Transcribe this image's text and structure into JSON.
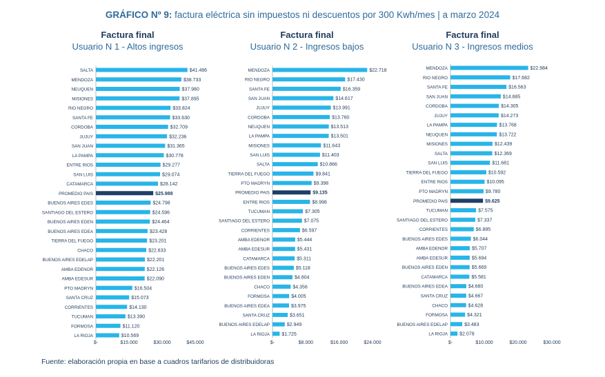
{
  "title_bold": "GRÁFICO Nº 9:",
  "title_rest": " factura eléctrica sin impuestos ni descuentos por 300 Kwh/mes | a marzo 2024",
  "source": "Fuente: elaboración propia en base a cuadros tarifarios de distribuidoras",
  "colors": {
    "bar": "#29b5e8",
    "highlight": "#1f3f66",
    "title": "#2f6b9a",
    "axis": "#bbbbbb"
  },
  "chart_data": [
    {
      "type": "bar",
      "orientation": "horizontal",
      "title": "Factura final",
      "subtitle": "Usuario N 1 - Altos ingresos",
      "highlight": "PROMEDIO PAIS",
      "xlim": [
        0,
        45000
      ],
      "ticks": [
        0,
        15000,
        30000,
        45000
      ],
      "tick_labels": [
        "$-",
        "$15.000",
        "$30.000",
        "$45.000"
      ],
      "categories": [
        "SALTA",
        "MENDOZA",
        "NEUQUEN",
        "MISIONES",
        "RIO NEGRO",
        "SANTA FE",
        "CORDOBA",
        "JUJUY",
        "SAN JUAN",
        "LA PAMPA",
        "ENTRE RIOS",
        "SAN LUIS",
        "CATAMARCA",
        "PROMEDIO PAIS",
        "BUENOS AIRES EDES",
        "SANTIAGO DEL ESTERO",
        "BUENOS AIRES EDEN",
        "BUENOS AIRES EDEA",
        "TIERRA DEL FUEGO",
        "CHACO",
        "BUENOS AIRES EDELAP",
        "AMBA EDENOR",
        "AMBA EDESUR",
        "PTO MADRYN",
        "SANTA CRUZ",
        "CORRIENTES",
        "TUCUMAN",
        "FORMOSA",
        "LA RIOJA"
      ],
      "values": [
        41486,
        38733,
        37980,
        37895,
        33824,
        33630,
        32709,
        32236,
        31365,
        30778,
        29277,
        29074,
        28142,
        25988,
        24798,
        24596,
        24464,
        23428,
        23201,
        22833,
        22201,
        22126,
        22090,
        16504,
        15073,
        14130,
        13390,
        11120,
        10569
      ],
      "value_labels": [
        "$41.486",
        "$38.733",
        "$37.980",
        "$37.895",
        "$33.824",
        "$33.630",
        "$32.709",
        "$32.236",
        "$31.365",
        "$30.778",
        "$29.277",
        "$29.074",
        "$28.142",
        "$25.988",
        "$24.798",
        "$24.596",
        "$24.464",
        "$23.428",
        "$23.201",
        "$22.833",
        "$22.201",
        "$22.126",
        "$22.090",
        "$16.504",
        "$15.073",
        "$14.130",
        "$13.390",
        "$11.120",
        "$10.569"
      ]
    },
    {
      "type": "bar",
      "orientation": "horizontal",
      "title": "Factura final",
      "subtitle": "Usuario N 2 - Ingresos bajos",
      "highlight": "PROMEDIO PAIS",
      "xlim": [
        0,
        24000
      ],
      "ticks": [
        0,
        8000,
        16000,
        24000
      ],
      "tick_labels": [
        "$-",
        "$8.000",
        "$16.000",
        "$24.000"
      ],
      "categories": [
        "MENDOZA",
        "RIO NEGRO",
        "SANTA FE",
        "SAN JUAN",
        "JUJUY",
        "CORDOBA",
        "NEUQUEN",
        "LA PAMPA",
        "MISIONES",
        "SAN LUIS",
        "SALTA",
        "TIERRA DEL FUEGO",
        "PTO MADRYN",
        "PROMEDIO PAIS",
        "ENTRE RIOS",
        "TUCUMAN",
        "SANTIAGO DEL ESTERO",
        "CORRIENTES",
        "AMBA EDENOR",
        "AMBA EDESUR",
        "CATAMARCA",
        "BUENOS AIRES EDES",
        "BUENOS AIRES EDEN",
        "CHACO",
        "FORMOSA",
        "BUENOS AIRES EDEA",
        "SANTA CRUZ",
        "BUENOS AIRES EDELAP",
        "LA RIOJA"
      ],
      "values": [
        22718,
        17430,
        16359,
        14617,
        13991,
        13760,
        13513,
        13501,
        11643,
        11403,
        10866,
        9841,
        9398,
        9135,
        8998,
        7305,
        7075,
        6597,
        5444,
        5431,
        5311,
        5118,
        4804,
        4356,
        4005,
        3975,
        3651,
        2949,
        1725
      ],
      "value_labels": [
        "$22.718",
        "$17.430",
        "$16.359",
        "$14.617",
        "$13.991",
        "$13.760",
        "$13.513",
        "$13.501",
        "$11.643",
        "$11.403",
        "$10.866",
        "$9.841",
        "$9.398",
        "$9.135",
        "$8.998",
        "$7.305",
        "$7.075",
        "$6.597",
        "$5.444",
        "$5.431",
        "$5.311",
        "$5.118",
        "$4.804",
        "$4.356",
        "$4.005",
        "$3.975",
        "$3.651",
        "$2.949",
        "$1.725"
      ]
    },
    {
      "type": "bar",
      "orientation": "horizontal",
      "title": "Factura final",
      "subtitle": "Usuario N 3 - Ingresos medios",
      "highlight": "PROMEDIO PAIS",
      "xlim": [
        0,
        30000
      ],
      "ticks": [
        0,
        10000,
        20000,
        30000
      ],
      "tick_labels": [
        "$-",
        "$10.000",
        "$20.000",
        "$30.000"
      ],
      "categories": [
        "MENDOZA",
        "RIO NEGRO",
        "SANTA FE",
        "SAN JUAN",
        "CORDOBA",
        "JUJUY",
        "LA PAMPA",
        "NEUQUEN",
        "MISIONES",
        "SALTA",
        "SAN LUIS",
        "TIERRA DEL FUEGO",
        "ENTRE RIOS",
        "PTO MADRYN",
        "PROMEDIO PAIS",
        "TUCUMAN",
        "SANTIAGO DEL ESTERO",
        "CORRIENTES",
        "BUENOS AIRES EDES",
        "AMBA EDENOR",
        "AMBA EDESUR",
        "BUENOS AIRES EDEN",
        "CATAMARCA",
        "BUENOS AIRES EDEA",
        "SANTA CRUZ",
        "CHACO",
        "FORMOSA",
        "BUENOS AIRES EDELAP",
        "LA RIOJA"
      ],
      "values": [
        22984,
        17682,
        16563,
        14885,
        14305,
        14273,
        13768,
        13722,
        12439,
        12369,
        11681,
        10592,
        10095,
        9780,
        9625,
        7575,
        7337,
        6895,
        6044,
        5707,
        5694,
        5669,
        5581,
        4680,
        4667,
        4628,
        4321,
        3483,
        2078
      ],
      "value_labels": [
        "$22.984",
        "$17.682",
        "$16.563",
        "$14.885",
        "$14.305",
        "$14.273",
        "$13.768",
        "$13.722",
        "$12.439",
        "$12.369",
        "$11.681",
        "$10.592",
        "$10.095",
        "$9.780",
        "$9.625",
        "$7.575",
        "$7.337",
        "$6.895",
        "$6.044",
        "$5.707",
        "$5.694",
        "$5.669",
        "$5.581",
        "$4.680",
        "$4.667",
        "$4.628",
        "$4.321",
        "$3.483",
        "$2.078"
      ]
    }
  ]
}
